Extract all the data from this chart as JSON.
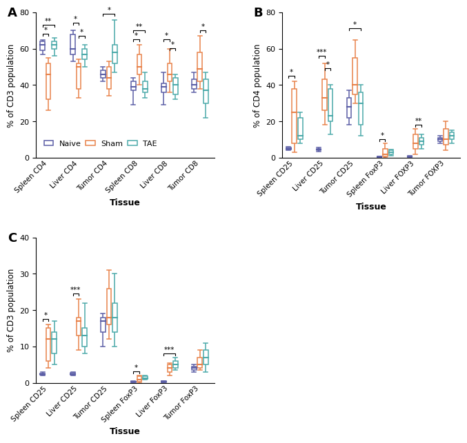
{
  "colors": {
    "naive": "#5B5EA6",
    "sham": "#E8824A",
    "tae": "#4BAAAA"
  },
  "panel_A": {
    "ylabel": "% of CD3 population",
    "ylim": [
      0,
      80
    ],
    "yticks": [
      0,
      20,
      40,
      60,
      80
    ],
    "groups": [
      "Spleen CD4",
      "Liver CD4",
      "Tumor CD4",
      "Spleen CD8",
      "Liver CD8",
      "Tumor CD8"
    ],
    "data": {
      "Spleen CD4": {
        "naive": {
          "min": 57,
          "q1": 59,
          "med": 62,
          "q3": 64,
          "max": 65
        },
        "sham": {
          "min": 26,
          "q1": 32,
          "med": 46,
          "q3": 52,
          "max": 55
        },
        "tae": {
          "min": 56,
          "q1": 60,
          "med": 62,
          "q3": 64,
          "max": 66
        }
      },
      "Liver CD4": {
        "naive": {
          "min": 53,
          "q1": 57,
          "med": 60,
          "q3": 68,
          "max": 70
        },
        "sham": {
          "min": 33,
          "q1": 38,
          "med": 50,
          "q3": 52,
          "max": 54
        },
        "tae": {
          "min": 50,
          "q1": 54,
          "med": 57,
          "q3": 60,
          "max": 62
        }
      },
      "Tumor CD4": {
        "naive": {
          "min": 42,
          "q1": 44,
          "med": 46,
          "q3": 48,
          "max": 50
        },
        "sham": {
          "min": 34,
          "q1": 38,
          "med": 44,
          "q3": 50,
          "max": 53
        },
        "tae": {
          "min": 47,
          "q1": 52,
          "med": 58,
          "q3": 62,
          "max": 76
        }
      },
      "Spleen CD8": {
        "naive": {
          "min": 29,
          "q1": 37,
          "med": 39,
          "q3": 42,
          "max": 44
        },
        "sham": {
          "min": 40,
          "q1": 46,
          "med": 50,
          "q3": 57,
          "max": 62
        },
        "tae": {
          "min": 33,
          "q1": 36,
          "med": 38,
          "q3": 42,
          "max": 47
        }
      },
      "Liver CD8": {
        "naive": {
          "min": 29,
          "q1": 36,
          "med": 39,
          "q3": 41,
          "max": 47
        },
        "sham": {
          "min": 36,
          "q1": 42,
          "med": 46,
          "q3": 52,
          "max": 60
        },
        "tae": {
          "min": 32,
          "q1": 35,
          "med": 40,
          "q3": 44,
          "max": 46
        }
      },
      "Tumor CD8": {
        "naive": {
          "min": 36,
          "q1": 38,
          "med": 40,
          "q3": 43,
          "max": 47
        },
        "sham": {
          "min": 38,
          "q1": 42,
          "med": 49,
          "q3": 58,
          "max": 67
        },
        "tae": {
          "min": 22,
          "q1": 30,
          "med": 37,
          "q3": 43,
          "max": 47
        }
      }
    },
    "significance": [
      {
        "gi": 0,
        "t1": "naive",
        "t2": "sham",
        "label": "*",
        "y": 67
      },
      {
        "gi": 0,
        "t1": "naive",
        "t2": "tae",
        "label": "**",
        "y": 72
      },
      {
        "gi": 1,
        "t1": "naive",
        "t2": "sham",
        "label": "*",
        "y": 73
      },
      {
        "gi": 1,
        "t1": "sham",
        "t2": "tae",
        "label": "*",
        "y": 66
      },
      {
        "gi": 2,
        "t1": "naive",
        "t2": "tae",
        "label": "*",
        "y": 78
      },
      {
        "gi": 3,
        "t1": "naive",
        "t2": "sham",
        "label": "*",
        "y": 64
      },
      {
        "gi": 3,
        "t1": "naive",
        "t2": "tae",
        "label": "**",
        "y": 69
      },
      {
        "gi": 4,
        "t1": "naive",
        "t2": "sham",
        "label": "*",
        "y": 64
      },
      {
        "gi": 4,
        "t1": "sham",
        "t2": "tae",
        "label": "*",
        "y": 59
      },
      {
        "gi": 5,
        "t1": "sham",
        "t2": "tae",
        "label": "*",
        "y": 69
      }
    ]
  },
  "panel_B": {
    "ylabel": "% of CD4 population",
    "ylim": [
      0,
      80
    ],
    "yticks": [
      0,
      20,
      40,
      60,
      80
    ],
    "groups": [
      "Spleen CD25",
      "Liver CD25",
      "Tumor CD25",
      "Spleen FoxP3",
      "Liver FOXP3",
      "Tumor FOXP3"
    ],
    "data": {
      "Spleen CD25": {
        "naive": {
          "min": 4.0,
          "q1": 4.5,
          "med": 5.0,
          "q3": 5.5,
          "max": 6.0
        },
        "sham": {
          "min": 3.0,
          "q1": 8.0,
          "med": 25.0,
          "q3": 38.0,
          "max": 42.0
        },
        "tae": {
          "min": 8.0,
          "q1": 10.0,
          "med": 12.0,
          "q3": 22.0,
          "max": 25.0
        }
      },
      "Liver CD25": {
        "naive": {
          "min": 3.5,
          "q1": 4.0,
          "med": 4.5,
          "q3": 5.0,
          "max": 5.5
        },
        "sham": {
          "min": 18.0,
          "q1": 26.0,
          "med": 33.0,
          "q3": 43.0,
          "max": 52.0
        },
        "tae": {
          "min": 13.0,
          "q1": 20.0,
          "med": 23.0,
          "q3": 38.0,
          "max": 40.0
        }
      },
      "Tumor CD25": {
        "naive": {
          "min": 18.0,
          "q1": 22.0,
          "med": 28.0,
          "q3": 33.0,
          "max": 37.0
        },
        "sham": {
          "min": 30.0,
          "q1": 35.0,
          "med": 40.0,
          "q3": 55.0,
          "max": 65.0
        },
        "tae": {
          "min": 12.0,
          "q1": 18.0,
          "med": 30.0,
          "q3": 36.0,
          "max": 40.0
        }
      },
      "Spleen FoxP3": {
        "naive": {
          "min": 0.0,
          "q1": 0.1,
          "med": 0.3,
          "q3": 0.5,
          "max": 0.8
        },
        "sham": {
          "min": 0.0,
          "q1": 0.5,
          "med": 2.0,
          "q3": 5.0,
          "max": 8.0
        },
        "tae": {
          "min": 1.0,
          "q1": 2.0,
          "med": 3.0,
          "q3": 4.0,
          "max": 4.5
        }
      },
      "Liver FOXP3": {
        "naive": {
          "min": 0.0,
          "q1": 0.2,
          "med": 0.5,
          "q3": 0.8,
          "max": 1.0
        },
        "sham": {
          "min": 2.0,
          "q1": 5.0,
          "med": 8.0,
          "q3": 13.0,
          "max": 16.0
        },
        "tae": {
          "min": 5.0,
          "q1": 7.0,
          "med": 9.0,
          "q3": 11.0,
          "max": 13.0
        }
      },
      "Tumor FOXP3": {
        "naive": {
          "min": 8.0,
          "q1": 9.0,
          "med": 10.0,
          "q3": 11.0,
          "max": 12.0
        },
        "sham": {
          "min": 4.0,
          "q1": 7.0,
          "med": 10.0,
          "q3": 16.0,
          "max": 20.0
        },
        "tae": {
          "min": 8.0,
          "q1": 10.0,
          "med": 12.0,
          "q3": 14.0,
          "max": 15.0
        }
      }
    },
    "significance": [
      {
        "gi": 0,
        "t1": "naive",
        "t2": "sham",
        "label": "*",
        "y": 44
      },
      {
        "gi": 1,
        "t1": "naive",
        "t2": "sham",
        "label": "***",
        "y": 55
      },
      {
        "gi": 1,
        "t1": "sham",
        "t2": "tae",
        "label": "*",
        "y": 48
      },
      {
        "gi": 2,
        "t1": "naive",
        "t2": "tae",
        "label": "*",
        "y": 70
      },
      {
        "gi": 3,
        "t1": "naive",
        "t2": "sham",
        "label": "*",
        "y": 9
      },
      {
        "gi": 4,
        "t1": "sham",
        "t2": "tae",
        "label": "**",
        "y": 17
      }
    ]
  },
  "panel_C": {
    "ylabel": "% of CD3 population",
    "ylim": [
      0,
      40
    ],
    "yticks": [
      0,
      10,
      20,
      30,
      40
    ],
    "groups": [
      "Spleen CD25",
      "Liver CD25",
      "Tumor CD25",
      "Spleen FoxP3",
      "Liver FoxP3",
      "Tumor FoxP3"
    ],
    "data": {
      "Spleen CD25": {
        "naive": {
          "min": 2.0,
          "q1": 2.1,
          "med": 2.3,
          "q3": 2.6,
          "max": 3.0
        },
        "sham": {
          "min": 4.0,
          "q1": 6.0,
          "med": 12.0,
          "q3": 15.0,
          "max": 16.0
        },
        "tae": {
          "min": 5.0,
          "q1": 8.0,
          "med": 12.0,
          "q3": 14.0,
          "max": 17.0
        }
      },
      "Liver CD25": {
        "naive": {
          "min": 2.0,
          "q1": 2.1,
          "med": 2.4,
          "q3": 2.7,
          "max": 3.0
        },
        "sham": {
          "min": 9.0,
          "q1": 13.0,
          "med": 17.0,
          "q3": 18.0,
          "max": 23.0
        },
        "tae": {
          "min": 8.0,
          "q1": 10.0,
          "med": 13.0,
          "q3": 15.0,
          "max": 22.0
        }
      },
      "Tumor CD25": {
        "naive": {
          "min": 10.0,
          "q1": 14.0,
          "med": 17.0,
          "q3": 18.0,
          "max": 19.0
        },
        "sham": {
          "min": 12.0,
          "q1": 16.0,
          "med": 18.0,
          "q3": 26.0,
          "max": 31.0
        },
        "tae": {
          "min": 10.0,
          "q1": 14.0,
          "med": 18.0,
          "q3": 22.0,
          "max": 30.0
        }
      },
      "Spleen FoxP3": {
        "naive": {
          "min": 0.0,
          "q1": 0.1,
          "med": 0.2,
          "q3": 0.35,
          "max": 0.5
        },
        "sham": {
          "min": 0.0,
          "q1": 0.2,
          "med": 0.8,
          "q3": 1.8,
          "max": 2.0
        },
        "tae": {
          "min": 0.8,
          "q1": 1.0,
          "med": 1.3,
          "q3": 1.8,
          "max": 2.0
        }
      },
      "Liver FoxP3": {
        "naive": {
          "min": 0.0,
          "q1": 0.1,
          "med": 0.2,
          "q3": 0.4,
          "max": 0.5
        },
        "sham": {
          "min": 2.0,
          "q1": 3.0,
          "med": 4.0,
          "q3": 5.0,
          "max": 5.5
        },
        "tae": {
          "min": 3.5,
          "q1": 4.0,
          "med": 5.0,
          "q3": 6.0,
          "max": 7.0
        }
      },
      "Tumor FoxP3": {
        "naive": {
          "min": 3.0,
          "q1": 3.5,
          "med": 4.0,
          "q3": 4.5,
          "max": 5.0
        },
        "sham": {
          "min": 3.5,
          "q1": 4.0,
          "med": 5.0,
          "q3": 7.0,
          "max": 9.0
        },
        "tae": {
          "min": 3.0,
          "q1": 5.0,
          "med": 7.0,
          "q3": 9.0,
          "max": 11.0
        }
      }
    },
    "significance": [
      {
        "gi": 0,
        "t1": "naive",
        "t2": "sham",
        "label": "*",
        "y": 17
      },
      {
        "gi": 1,
        "t1": "naive",
        "t2": "sham",
        "label": "***",
        "y": 24
      },
      {
        "gi": 3,
        "t1": "naive",
        "t2": "sham",
        "label": "*",
        "y": 2.5
      },
      {
        "gi": 4,
        "t1": "naive",
        "t2": "tae",
        "label": "***",
        "y": 7.5
      }
    ]
  }
}
